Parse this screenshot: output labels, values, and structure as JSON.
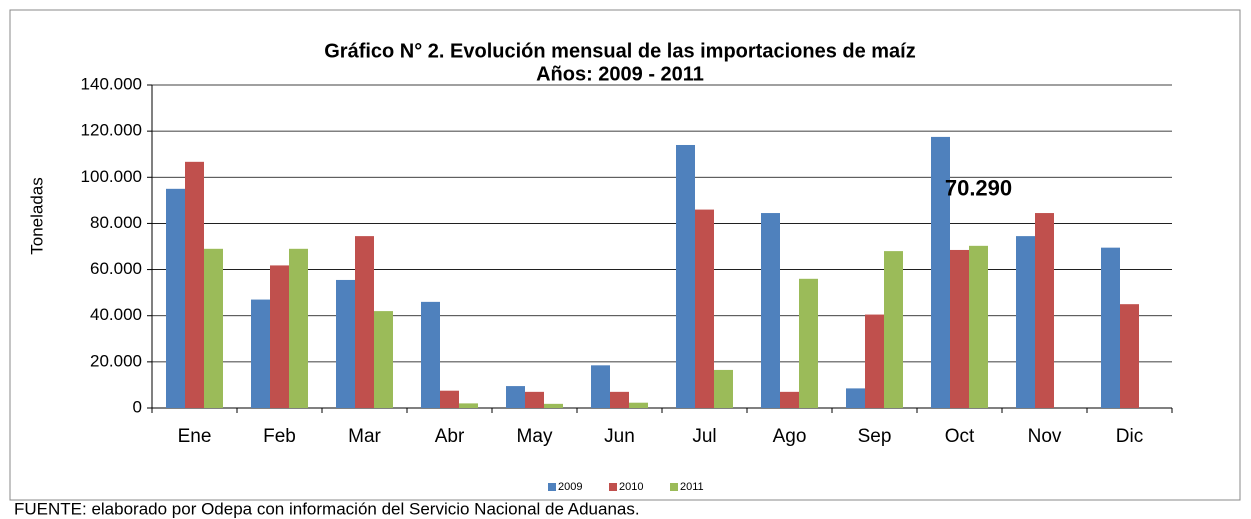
{
  "chart_data": {
    "type": "bar",
    "title": "Gráfico N° 2. Evolución mensual de las importaciones de maíz",
    "subtitle": "Años: 2009 - 2011",
    "y_label": "Toneladas",
    "source": "FUENTE: elaborado por Odepa con información del Servicio Nacional de Aduanas.",
    "categories": [
      "Ene",
      "Feb",
      "Mar",
      "Abr",
      "May",
      "Jun",
      "Jul",
      "Ago",
      "Sep",
      "Oct",
      "Nov",
      "Dic"
    ],
    "series": [
      {
        "name": "2009",
        "color": "#4f81bd",
        "values": [
          95000,
          47000,
          55500,
          46000,
          9500,
          18500,
          114000,
          84500,
          8500,
          117500,
          74500,
          69500
        ]
      },
      {
        "name": "2010",
        "color": "#c0504d",
        "values": [
          106700,
          61800,
          74500,
          7500,
          7000,
          7000,
          86000,
          7000,
          40500,
          68500,
          84500,
          45000
        ]
      },
      {
        "name": "2011",
        "color": "#9bbb59",
        "values": [
          69000,
          69000,
          42000,
          2000,
          1800,
          2300,
          16500,
          56000,
          68000,
          70290,
          null,
          null
        ],
        "value_labels": [
          null,
          null,
          null,
          null,
          null,
          null,
          null,
          null,
          null,
          "70.290",
          null,
          null
        ]
      }
    ],
    "ylim": [
      0,
      140000
    ],
    "yticks": [
      0,
      {
        "value": 20000,
        "label": "20.000"
      },
      {
        "value": 40000,
        "label": "40.000"
      },
      {
        "value": 60000,
        "label": "60.000"
      },
      {
        "value": 80000,
        "label": "80.000"
      },
      {
        "value": 100000,
        "label": "100.000"
      },
      {
        "value": 120000,
        "label": "120.000"
      },
      {
        "value": 140000,
        "label": "140.000"
      }
    ],
    "grid": true,
    "legend": "bottom"
  }
}
